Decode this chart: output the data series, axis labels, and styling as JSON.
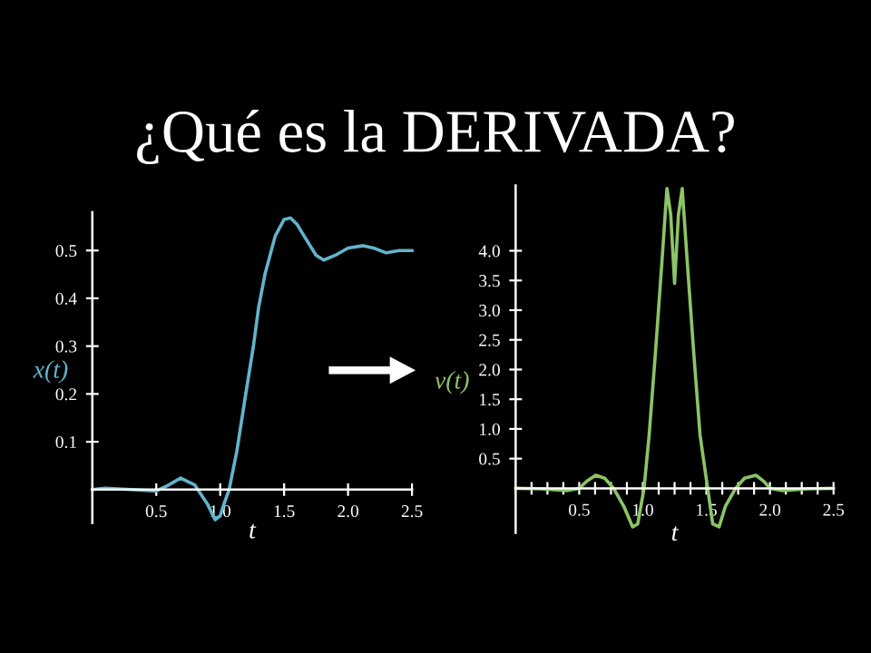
{
  "chart_data": [
    {
      "type": "line",
      "title": "¿Qué es la DERIVADA?",
      "xlabel": "t",
      "ylabel": "x(t)",
      "x": [
        0,
        0.1,
        0.3,
        0.5,
        0.6,
        0.69,
        0.8,
        0.9,
        0.96,
        1.0,
        1.03,
        1.07,
        1.13,
        1.2,
        1.26,
        1.3,
        1.35,
        1.43,
        1.5,
        1.55,
        1.6,
        1.68,
        1.75,
        1.81,
        1.9,
        2.0,
        2.12,
        2.2,
        2.3,
        2.4,
        2.5
      ],
      "series": [
        {
          "color": "#62b4cc",
          "values": [
            0.0,
            0.003,
            0.0,
            -0.003,
            0.01,
            0.024,
            0.01,
            -0.03,
            -0.063,
            -0.055,
            -0.03,
            0.0,
            0.08,
            0.2,
            0.3,
            0.38,
            0.45,
            0.53,
            0.565,
            0.568,
            0.555,
            0.52,
            0.49,
            0.48,
            0.49,
            0.505,
            0.51,
            0.505,
            0.495,
            0.5,
            0.5
          ]
        }
      ],
      "xlim": [
        0,
        2.5
      ],
      "ylim": [
        -0.07,
        0.58
      ],
      "xticks": [
        0.5,
        {
          "value": 1.0,
          "label": "1.0"
        },
        1.5,
        {
          "value": 2.0,
          "label": "2.0"
        },
        2.5
      ],
      "yticks": [
        0.1,
        0.2,
        0.3,
        0.4,
        0.5
      ],
      "grid": false,
      "marker": "none",
      "line_style": "solid"
    },
    {
      "type": "line",
      "xlabel": "t",
      "ylabel": "v(t)",
      "x": [
        0,
        0.2,
        0.4,
        0.5,
        0.56,
        0.63,
        0.7,
        0.77,
        0.85,
        0.92,
        0.96,
        1.01,
        1.05,
        1.1,
        1.15,
        1.19,
        1.22,
        1.25,
        1.28,
        1.31,
        1.35,
        1.4,
        1.45,
        1.51,
        1.55,
        1.6,
        1.65,
        1.73,
        1.8,
        1.89,
        1.95,
        2.0,
        2.1,
        2.3,
        2.5
      ],
      "series": [
        {
          "color": "#8cc466",
          "values": [
            0.0,
            -0.01,
            -0.04,
            0.0,
            0.12,
            0.22,
            0.17,
            0.0,
            -0.3,
            -0.65,
            -0.6,
            0.0,
            0.9,
            2.3,
            3.8,
            5.05,
            4.6,
            3.45,
            4.6,
            5.05,
            3.8,
            2.3,
            0.9,
            0.0,
            -0.6,
            -0.65,
            -0.3,
            0.0,
            0.17,
            0.22,
            0.12,
            0.0,
            -0.04,
            -0.01,
            0.0
          ]
        }
      ],
      "xlim": [
        0,
        2.5
      ],
      "ylim": [
        -0.75,
        5.1
      ],
      "xticks": [
        {
          "value": 0.125,
          "label": null
        },
        {
          "value": 0.25,
          "label": null
        },
        {
          "value": 0.375,
          "label": null
        },
        0.5,
        {
          "value": 0.625,
          "label": null
        },
        {
          "value": 0.75,
          "label": null
        },
        {
          "value": 0.875,
          "label": null
        },
        {
          "value": 1.0,
          "label": "1.0"
        },
        {
          "value": 1.125,
          "label": null
        },
        {
          "value": 1.25,
          "label": null
        },
        {
          "value": 1.375,
          "label": null
        },
        1.5,
        {
          "value": 1.625,
          "label": null
        },
        {
          "value": 1.75,
          "label": null
        },
        {
          "value": 1.875,
          "label": null
        },
        {
          "value": 2.0,
          "label": "2.0"
        },
        {
          "value": 2.125,
          "label": null
        },
        {
          "value": 2.25,
          "label": null
        },
        {
          "value": 2.375,
          "label": null
        },
        2.5
      ],
      "yticks": [
        0.5,
        {
          "value": 1.0,
          "label": "1.0"
        },
        1.5,
        {
          "value": 2.0,
          "label": "2.0"
        },
        2.5,
        {
          "value": 3.0,
          "label": "3.0"
        },
        3.5,
        {
          "value": 4.0,
          "label": "4.0"
        }
      ],
      "grid": false,
      "marker": "none",
      "line_style": "solid"
    }
  ]
}
